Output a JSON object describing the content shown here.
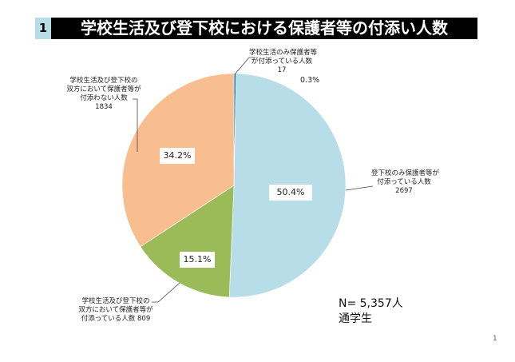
{
  "header": {
    "number": "1",
    "title": "学校生活及び登下校における保護者等の付添い人数"
  },
  "chart_data": {
    "type": "pie",
    "start_angle": "12 o'clock",
    "direction": "clockwise",
    "slices": [
      {
        "label": [
          "学校生活のみ保護者等",
          "が付添っている人数",
          "17"
        ],
        "value": 17,
        "percent_label": "0.3%",
        "color": "#1f7bbf"
      },
      {
        "label": [
          "登下校のみ保護者等が",
          "付添っている人数",
          "2697"
        ],
        "value": 2697,
        "percent_label": "50.4%",
        "color": "#b7dde8"
      },
      {
        "label": [
          "学校生活及び登下校の",
          "双方において保護者等が",
          "付添っている人数 809"
        ],
        "value": 809,
        "percent_label": "15.1%",
        "color": "#9bbb59"
      },
      {
        "label": [
          "学校生活及び登下校の",
          "双方において保護者等が",
          "付添わない人数",
          "1834"
        ],
        "value": 1834,
        "percent_label": "34.2%",
        "color": "#f9be8f"
      }
    ],
    "annotations": [
      "N= 5,357人",
      "通学生"
    ]
  },
  "page_number": "1"
}
